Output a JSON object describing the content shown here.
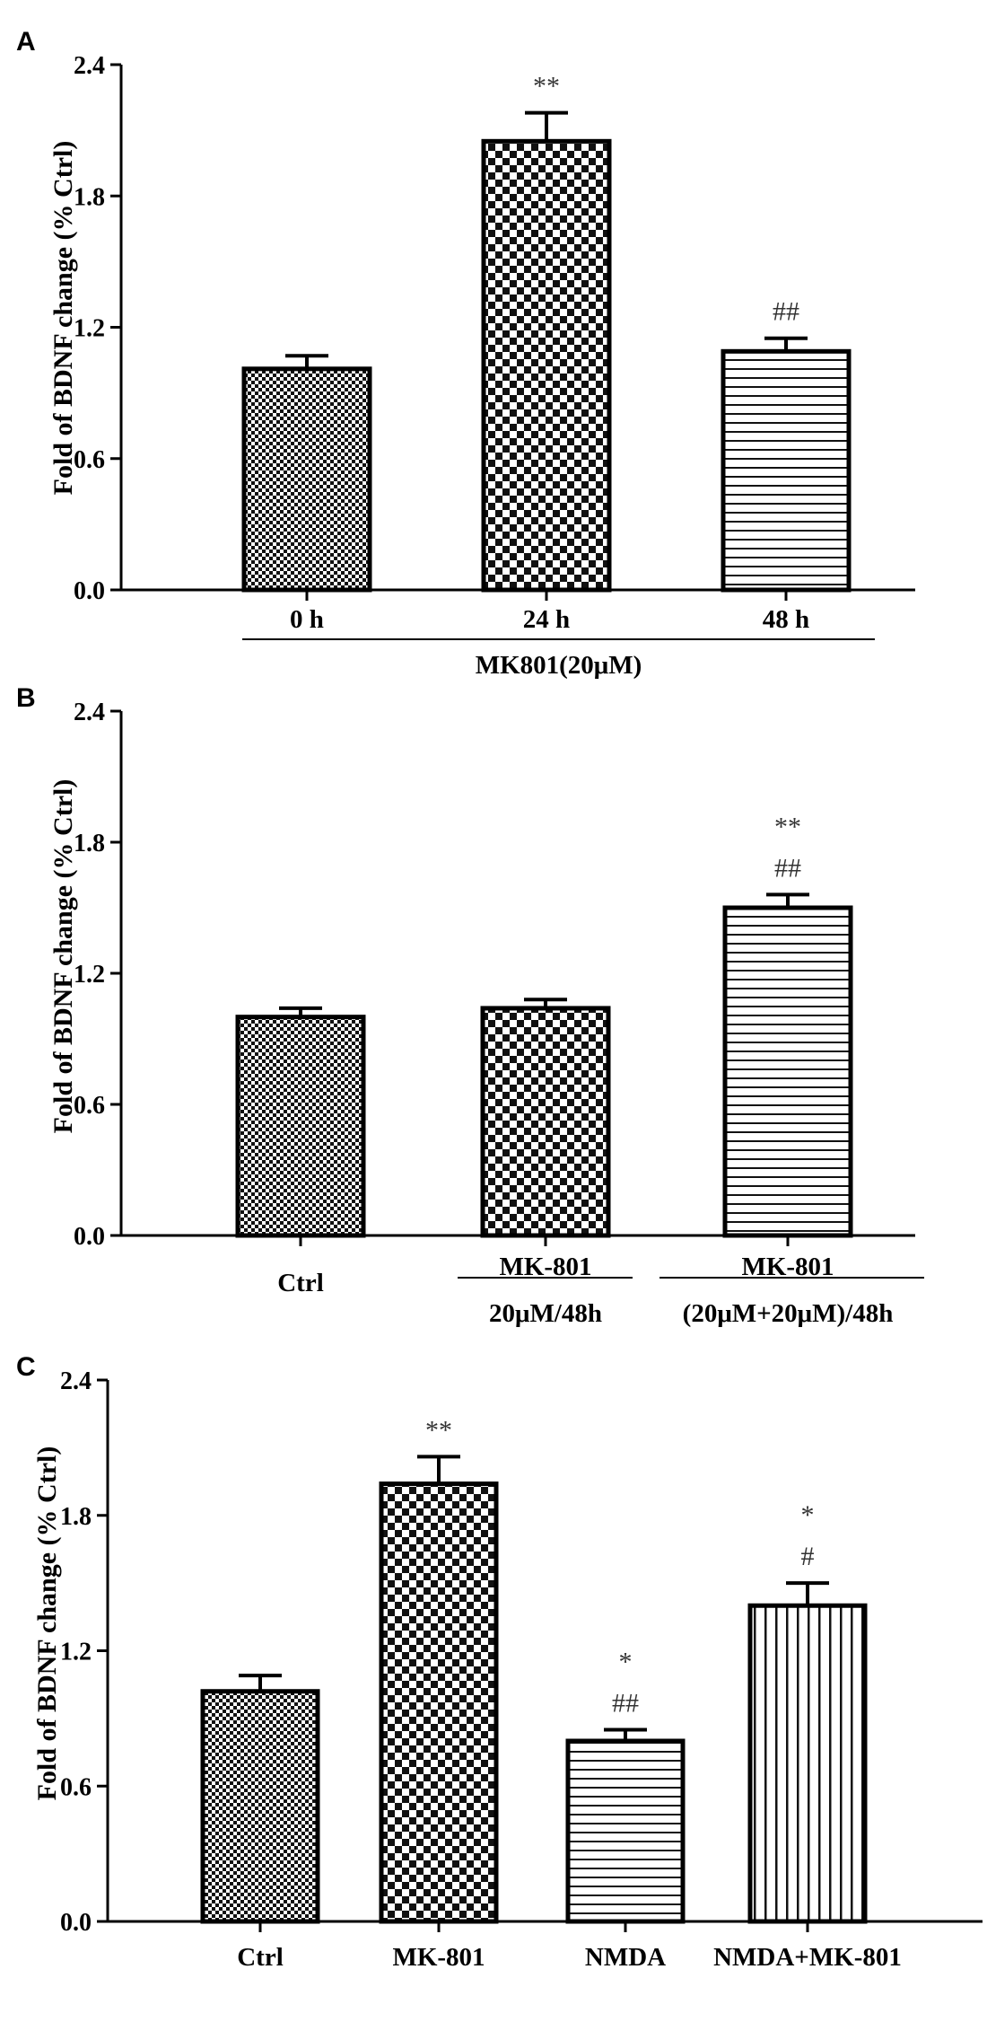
{
  "chart_data": [
    {
      "type": "bar",
      "panel": "A",
      "ylabel": "Fold of BDNF change (% Ctrl)",
      "ylim": [
        0,
        2.4
      ],
      "yticks": [
        "0.0",
        "0.6",
        "1.2",
        "1.8",
        "2.4"
      ],
      "categories": [
        "0 h",
        "24 h",
        "48 h"
      ],
      "values": [
        1.01,
        2.05,
        1.09
      ],
      "errors": [
        0.06,
        0.13,
        0.06
      ],
      "patterns": [
        "fine-check",
        "check",
        "hlines"
      ],
      "annotations": [
        [],
        [
          "**"
        ],
        [
          "##"
        ]
      ],
      "group_label": "MK801(20μM)"
    },
    {
      "type": "bar",
      "panel": "B",
      "ylabel": "Fold of BDNF change (% Ctrl)",
      "ylim": [
        0,
        2.4
      ],
      "yticks": [
        "0.0",
        "0.6",
        "1.2",
        "1.8",
        "2.4"
      ],
      "categories": [
        "Ctrl",
        "MK-801|20μM/48h",
        "MK-801|(20μM+20μM)/48h"
      ],
      "values": [
        1.0,
        1.04,
        1.5
      ],
      "errors": [
        0.04,
        0.04,
        0.06
      ],
      "patterns": [
        "fine-check",
        "check",
        "hlines"
      ],
      "annotations": [
        [],
        [],
        [
          "**",
          "##"
        ]
      ]
    },
    {
      "type": "bar",
      "panel": "C",
      "ylabel": "Fold of BDNF change (% Ctrl)",
      "ylim": [
        0,
        2.4
      ],
      "yticks": [
        "0.0",
        "0.6",
        "1.2",
        "1.8",
        "2.4"
      ],
      "categories": [
        "Ctrl",
        "MK-801",
        "NMDA",
        "NMDA+MK-801"
      ],
      "values": [
        1.02,
        1.94,
        0.8,
        1.4
      ],
      "errors": [
        0.07,
        0.12,
        0.05,
        0.1
      ],
      "patterns": [
        "fine-check",
        "check",
        "hlines",
        "vlines"
      ],
      "annotations": [
        [],
        [
          "**"
        ],
        [
          "*",
          "##"
        ],
        [
          "*",
          "#"
        ]
      ]
    }
  ]
}
